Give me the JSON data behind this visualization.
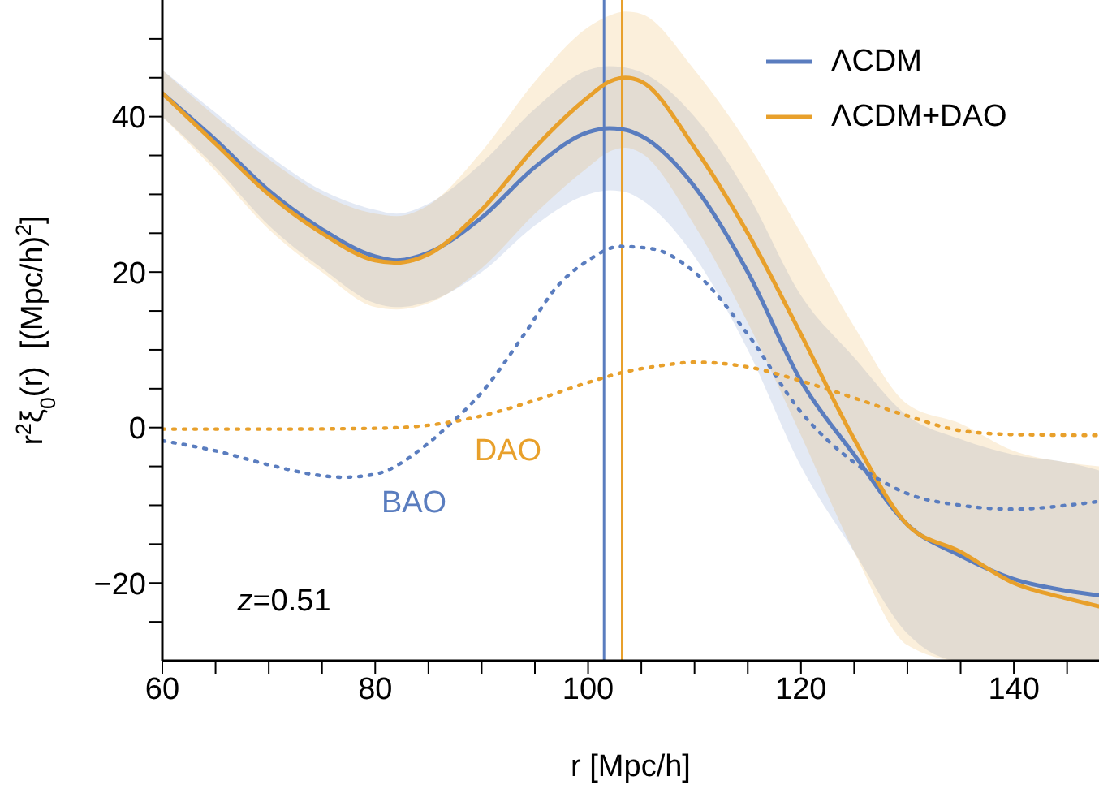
{
  "chart_data": {
    "type": "line",
    "xlabel": "r  [Mpc/h]",
    "ylabel": "r$^{2}$ξ$_{0}$(r)  [(Mpc/h)$^{2}$]",
    "x": [
      60,
      65,
      70,
      75,
      80,
      82,
      85,
      90,
      95,
      100,
      102,
      103.5,
      105,
      110,
      115,
      120,
      125,
      130,
      135,
      140,
      145,
      148
    ],
    "series": [
      {
        "name": "ΛCDM",
        "color": "#5a7dbf",
        "values": [
          43,
          37,
          30.5,
          25.5,
          22,
          21.5,
          22.5,
          27,
          33.5,
          38,
          38.5,
          38.3,
          37.5,
          31,
          20,
          6,
          -3.5,
          -12.5,
          -16.5,
          -19.5,
          -21,
          -21.6
        ],
        "lower": [
          40,
          33.5,
          26,
          20.5,
          16,
          15.5,
          16.2,
          20,
          26,
          30,
          30.5,
          30.3,
          29.3,
          22,
          10,
          -5,
          -16,
          -26.5,
          -30,
          -30,
          -30,
          -30
        ],
        "upper": [
          46,
          40.5,
          35,
          30.5,
          28,
          27.5,
          28.8,
          34,
          41,
          46,
          46.5,
          46.3,
          45.7,
          40,
          30,
          17,
          9,
          1.5,
          -1.5,
          -3.5,
          -4.5,
          -5.5
        ]
      },
      {
        "name": "ΛCDM+DAO",
        "color": "#e8a02b",
        "values": [
          43,
          36.5,
          30,
          25,
          21.5,
          21.2,
          22.3,
          28,
          36,
          42.5,
          44.5,
          45,
          44.5,
          36,
          25,
          12,
          -1.5,
          -12.5,
          -16,
          -20,
          -22,
          -23
        ],
        "lower": [
          40,
          33,
          25.5,
          20,
          15.5,
          15.2,
          16,
          20.5,
          27.5,
          33.5,
          35.5,
          36,
          35.3,
          26,
          13.5,
          -1,
          -16,
          -28,
          -30,
          -30,
          -30,
          -30
        ],
        "upper": [
          46,
          40,
          34.5,
          30,
          27.5,
          27.2,
          28.6,
          35.5,
          44.5,
          51.5,
          53,
          53.5,
          53.2,
          46,
          36.5,
          25,
          13,
          3,
          0.5,
          -3,
          -4.5,
          -5
        ]
      },
      {
        "color": "#5a7dbf",
        "line_style": "dotted",
        "x": [
          60,
          65,
          70,
          75,
          77,
          80,
          85,
          87,
          90,
          94,
          97,
          100,
          103,
          106,
          110,
          115,
          120,
          125,
          130,
          135,
          140,
          145,
          148
        ],
        "values": [
          -1.7,
          -3,
          -4.8,
          -6.2,
          -6.4,
          -6,
          -2,
          0.4,
          4.5,
          12,
          18,
          21.5,
          23.3,
          23,
          20,
          12,
          2,
          -4.5,
          -8.5,
          -10,
          -10.5,
          -10,
          -9.5
        ]
      },
      {
        "color": "#e8a02b",
        "line_style": "dotted",
        "x": [
          60,
          70,
          80,
          85,
          90,
          95,
          100,
          103,
          107,
          110,
          115,
          120,
          125,
          130,
          135,
          140,
          148
        ],
        "values": [
          -0.2,
          -0.2,
          -0.1,
          0.3,
          1.5,
          3.5,
          5.8,
          7,
          8,
          8.4,
          7.8,
          6,
          3.8,
          1.5,
          -0.4,
          -0.9,
          -1
        ]
      }
    ],
    "ref_lines": [
      {
        "axis": "x",
        "value": 101.5,
        "color": "#5a7dbf"
      },
      {
        "axis": "x",
        "value": 103.2,
        "color": "#e8a02b"
      }
    ],
    "annotations": [
      "BAO",
      "DAO",
      "z=0.51"
    ],
    "xlim": [
      60,
      148
    ],
    "xticks": [
      60,
      {
        "value": 65,
        "label": null
      },
      80,
      {
        "value": 70,
        "label": null
      },
      {
        "value": 75,
        "label": null
      },
      {
        "value": 85,
        "label": null
      },
      {
        "value": 90,
        "label": null
      },
      {
        "value": 95,
        "label": null
      },
      100,
      {
        "value": 105,
        "label": null
      },
      {
        "value": 110,
        "label": null
      },
      {
        "value": 115,
        "label": null
      },
      120,
      {
        "value": 125,
        "label": null
      },
      {
        "value": 130,
        "label": null
      },
      {
        "value": 135,
        "label": null
      },
      140,
      {
        "value": 145,
        "label": null
      }
    ],
    "ylim": [
      -30,
      55
    ],
    "yticks": [
      {
        "value": -25,
        "label": null
      },
      -20,
      {
        "value": -15,
        "label": null
      },
      {
        "value": -10,
        "label": null
      },
      {
        "value": -5,
        "label": null
      },
      0,
      {
        "value": 5,
        "label": null
      },
      {
        "value": 10,
        "label": null
      },
      {
        "value": 15,
        "label": null
      },
      20,
      {
        "value": 25,
        "label": null
      },
      {
        "value": 30,
        "label": null
      },
      {
        "value": 35,
        "label": null
      },
      40,
      {
        "value": 45,
        "label": null
      },
      {
        "value": 50,
        "label": null
      }
    ],
    "grid": false,
    "legend": "top right",
    "line_style": "solid",
    "marker": "none"
  }
}
